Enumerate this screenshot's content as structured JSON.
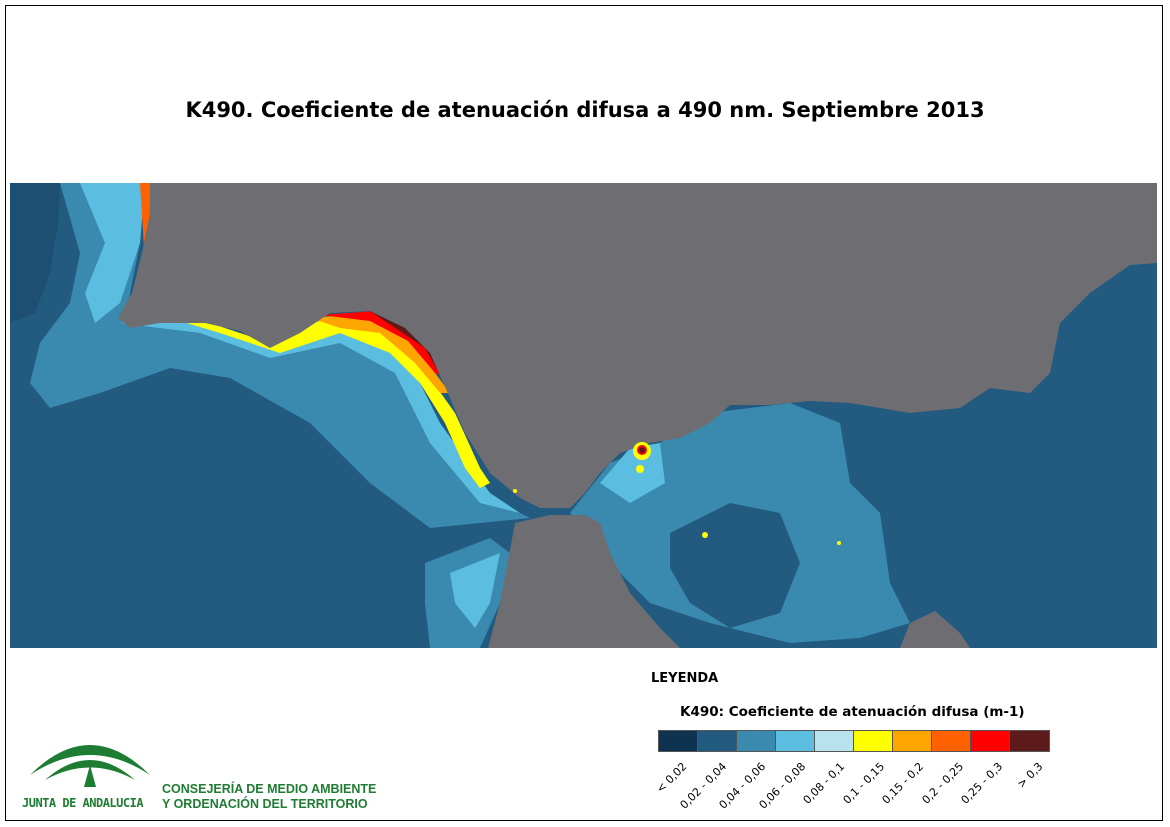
{
  "title": "K490. Coeficiente de atenuación difusa a 490 nm. Septiembre 2013",
  "legend": {
    "heading": "LEYENDA",
    "subtitle": "K490: Coeficiente de atenuación difusa (m-1)",
    "classes": [
      {
        "label": "< 0,02",
        "color": "#0d3350"
      },
      {
        "label": "0,02 - 0,04",
        "color": "#225a80"
      },
      {
        "label": "0,04 - 0,06",
        "color": "#3a8ab0"
      },
      {
        "label": "0,06 - 0,08",
        "color": "#5bbde0"
      },
      {
        "label": "0,08 - 0,1",
        "color": "#b8e2ee"
      },
      {
        "label": "0,1 - 0,15",
        "color": "#ffff00"
      },
      {
        "label": "0,15 - 0,2",
        "color": "#ffa500"
      },
      {
        "label": "0,2 - 0,25",
        "color": "#ff6000"
      },
      {
        "label": "0,25 - 0,3",
        "color": "#ff0000"
      },
      {
        "label": "> 0,3",
        "color": "#5c1a1a"
      }
    ],
    "no_data_color": "#6e6e72"
  },
  "branding": {
    "logo_text": "JUNTA DE ANDALUCIA",
    "department_line1": "CONSEJERÍA DE MEDIO AMBIENTE",
    "department_line2": "Y ORDENACIÓN DEL TERRITORIO",
    "brand_color": "#1e7d32"
  }
}
